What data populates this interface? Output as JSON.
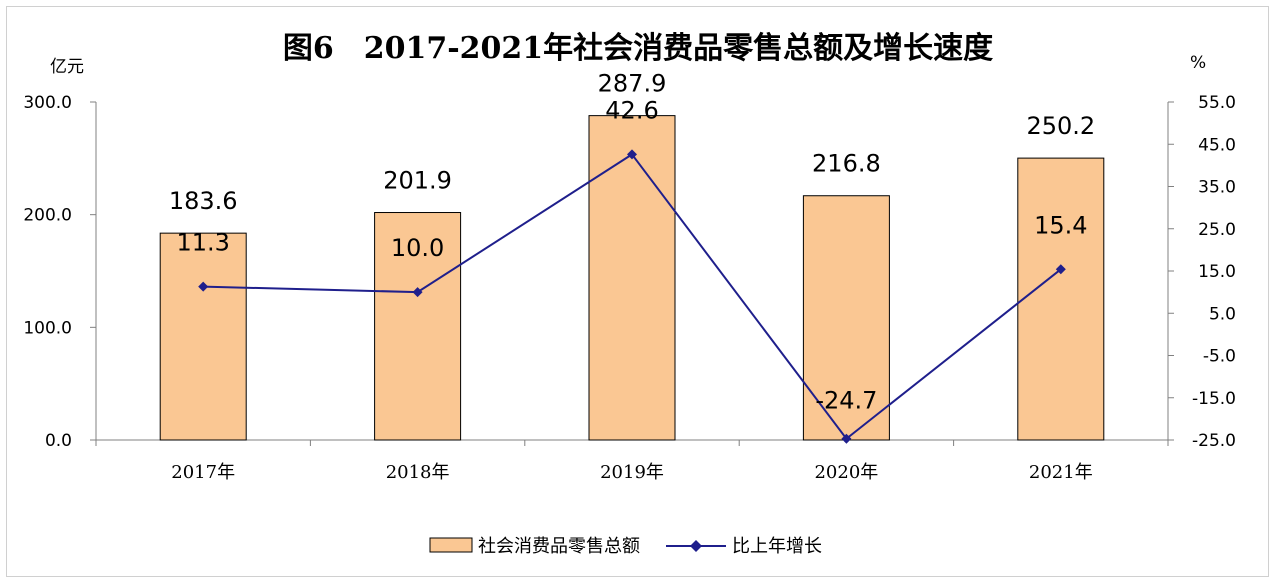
{
  "chart_data": {
    "type": "bar+line",
    "title": "图6　2017-2021年社会消费品零售总额及增长速度",
    "categories": [
      "2017年",
      "2018年",
      "2019年",
      "2020年",
      "2021年"
    ],
    "left_axis": {
      "unit": "亿元",
      "ylim": [
        0,
        300
      ],
      "ticks": [
        "0.0",
        "100.0",
        "200.0",
        "300.0"
      ]
    },
    "right_axis": {
      "unit": "%",
      "ylim": [
        -25,
        55
      ],
      "ticks": [
        "-25.0",
        "-15.0",
        "-5.0",
        "5.0",
        "15.0",
        "25.0",
        "35.0",
        "45.0",
        "55.0"
      ]
    },
    "series": [
      {
        "name": "社会消费品零售总额",
        "kind": "bar",
        "axis": "left",
        "color": "#FAC793",
        "values": [
          183.6,
          201.9,
          287.9,
          216.8,
          250.2
        ],
        "labels": [
          "183.6",
          "201.9",
          "287.9",
          "216.8",
          "250.2"
        ]
      },
      {
        "name": "比上年增长",
        "kind": "line",
        "axis": "right",
        "color": "#1F1F8C",
        "values": [
          11.3,
          10.0,
          42.6,
          -24.7,
          15.4
        ],
        "labels": [
          "11.3",
          "10.0",
          "42.6",
          "-24.7",
          "15.4"
        ]
      }
    ],
    "legend_position": "bottom",
    "grid": false
  }
}
